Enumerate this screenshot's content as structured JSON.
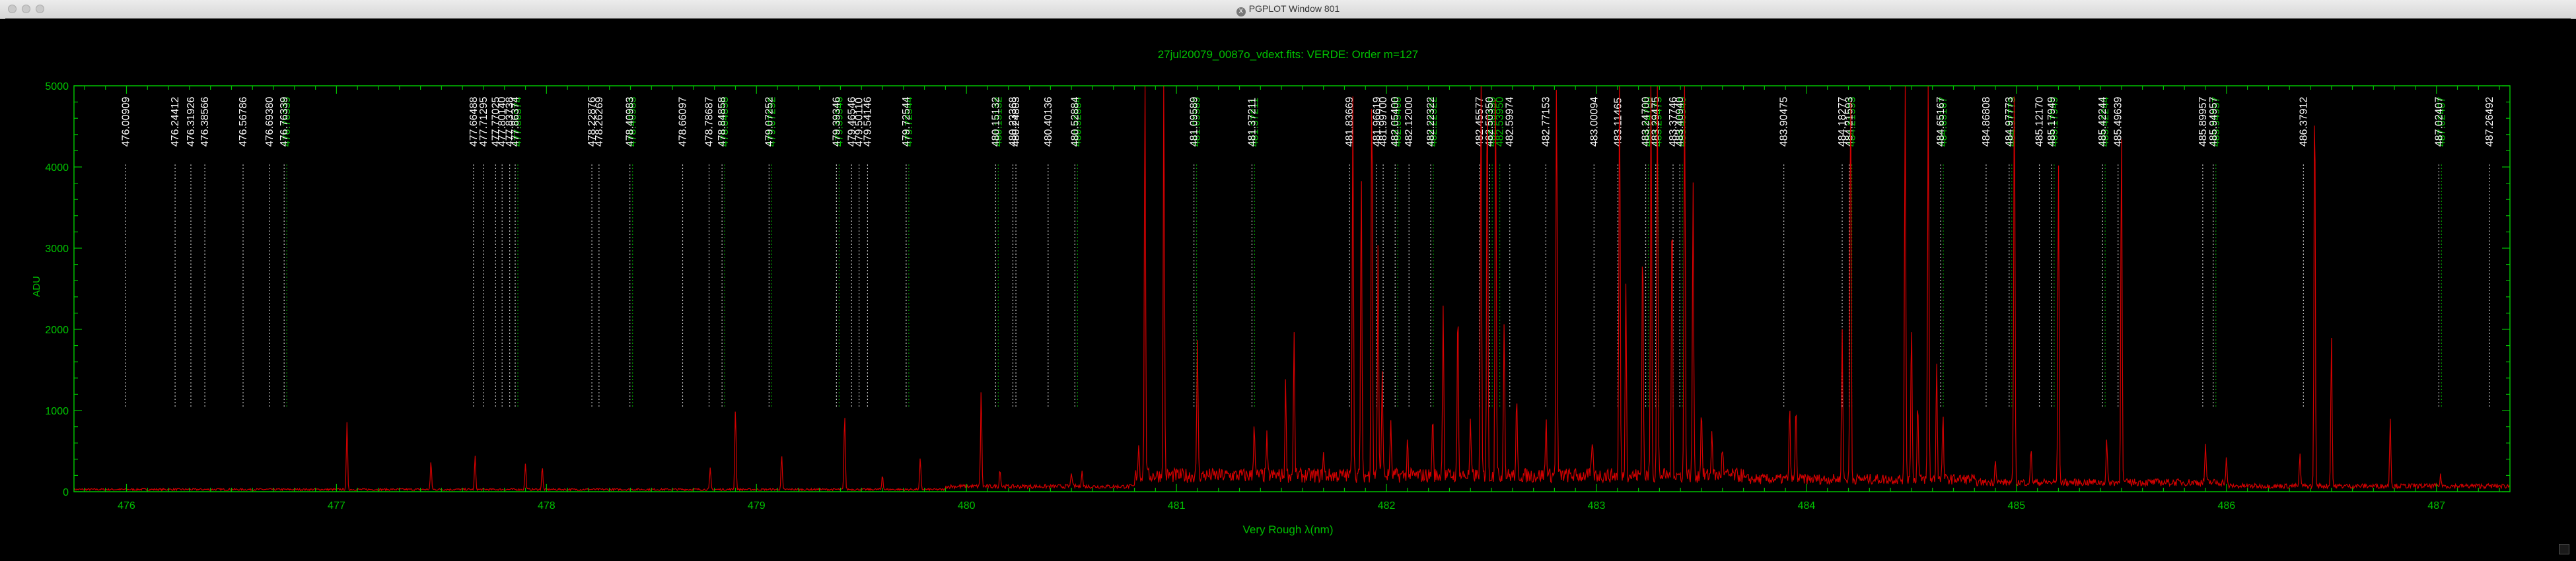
{
  "window": {
    "title": "PGPLOT Window 801"
  },
  "chart_data": {
    "type": "line",
    "title": "27jul20079_0087o_vdext.fits: VERDE: Order m=127",
    "xlabel": "Very Rough λ(nm)",
    "ylabel": "ADU",
    "xlim": [
      475.75,
      487.35
    ],
    "ylim": [
      0,
      5000
    ],
    "xticks": [
      476,
      477,
      478,
      479,
      480,
      481,
      482,
      483,
      484,
      485,
      486,
      487
    ],
    "yticks": [
      0,
      1000,
      2000,
      3000,
      4000,
      5000
    ],
    "colors": {
      "axes": "#00c000",
      "spectrum": "#d40000",
      "white_lines": "#ffffff",
      "green_lines": "#00c000"
    },
    "white_lines": [
      {
        "wl": 476.00909,
        "label": "476.00909"
      },
      {
        "wl": 476.24412,
        "label": "476.24412"
      },
      {
        "wl": 476.31926,
        "label": "476.31926"
      },
      {
        "wl": 476.38566,
        "label": "476.38566"
      },
      {
        "wl": 476.56786,
        "label": "476.56786"
      },
      {
        "wl": 476.6938,
        "label": "476.69380"
      },
      {
        "wl": 476.76339,
        "label": "476.76339"
      },
      {
        "wl": 477.66488,
        "label": "477.66488"
      },
      {
        "wl": 477.71295,
        "label": "477.71295"
      },
      {
        "wl": 477.77025,
        "label": "477.77025"
      },
      {
        "wl": 477.8014,
        "label": "477.80140"
      },
      {
        "wl": 477.83738,
        "label": "477.83738"
      },
      {
        "wl": 477.86374,
        "label": "477.86374"
      },
      {
        "wl": 478.22876,
        "label": "478.22876"
      },
      {
        "wl": 478.26269,
        "label": "478.26269"
      },
      {
        "wl": 478.40983,
        "label": "478.40983"
      },
      {
        "wl": 478.66097,
        "label": "478.66097"
      },
      {
        "wl": 478.78687,
        "label": "478.78687"
      },
      {
        "wl": 478.84858,
        "label": "478.84858"
      },
      {
        "wl": 479.07252,
        "label": "479.07252"
      },
      {
        "wl": 479.39346,
        "label": "479.39346"
      },
      {
        "wl": 479.46546,
        "label": "479.46546"
      },
      {
        "wl": 479.5011,
        "label": "479.50110"
      },
      {
        "wl": 479.54146,
        "label": "479.54146"
      },
      {
        "wl": 479.72544,
        "label": "479.72544"
      },
      {
        "wl": 480.15132,
        "label": "480.15132"
      },
      {
        "wl": 480.23368,
        "label": "480.23368"
      },
      {
        "wl": 480.24803,
        "label": "480.24803"
      },
      {
        "wl": 480.40136,
        "label": "480.40136"
      },
      {
        "wl": 480.52884,
        "label": "480.52884"
      },
      {
        "wl": 481.09589,
        "label": "481.09589"
      },
      {
        "wl": 481.37211,
        "label": "481.37211"
      },
      {
        "wl": 481.83669,
        "label": "481.83669"
      },
      {
        "wl": 481.96619,
        "label": "481.96619"
      },
      {
        "wl": 481.997,
        "label": "481.99700"
      },
      {
        "wl": 482.054,
        "label": "482.05400"
      },
      {
        "wl": 482.12,
        "label": "482.12000"
      },
      {
        "wl": 482.22322,
        "label": "482.22322"
      },
      {
        "wl": 482.45577,
        "label": "482.45577"
      },
      {
        "wl": 482.5035,
        "label": "482.50350"
      },
      {
        "wl": 482.59974,
        "label": "482.59974"
      },
      {
        "wl": 482.77153,
        "label": "482.77153"
      },
      {
        "wl": 483.00094,
        "label": "483.00094"
      },
      {
        "wl": 483.11465,
        "label": "483.11465"
      },
      {
        "wl": 483.247,
        "label": "483.24700"
      },
      {
        "wl": 483.29475,
        "label": "483.29475"
      },
      {
        "wl": 483.37746,
        "label": "483.37746"
      },
      {
        "wl": 483.4094,
        "label": "483.40940"
      },
      {
        "wl": 483.90475,
        "label": "483.90475"
      },
      {
        "wl": 484.18277,
        "label": "484.18277"
      },
      {
        "wl": 484.21593,
        "label": "484.21593"
      },
      {
        "wl": 484.65167,
        "label": "484.65167"
      },
      {
        "wl": 484.86808,
        "label": "484.86808"
      },
      {
        "wl": 484.97773,
        "label": "484.97773"
      },
      {
        "wl": 485.1217,
        "label": "485.12170"
      },
      {
        "wl": 485.17949,
        "label": "485.17949"
      },
      {
        "wl": 485.42244,
        "label": "485.42244"
      },
      {
        "wl": 485.49639,
        "label": "485.49639"
      },
      {
        "wl": 485.89957,
        "label": "485.89957"
      },
      {
        "wl": 485.94957,
        "label": "485.94957"
      },
      {
        "wl": 486.37912,
        "label": "486.37912"
      },
      {
        "wl": 487.02407,
        "label": "487.02407"
      },
      {
        "wl": 487.26492,
        "label": "487.26492"
      }
    ],
    "green_lines": [
      {
        "wl": 476.76339,
        "label": "476.76339"
      },
      {
        "wl": 477.86374,
        "label": "477.86374"
      },
      {
        "wl": 478.40983,
        "label": "478.40983"
      },
      {
        "wl": 478.84858,
        "label": "478.84858"
      },
      {
        "wl": 479.07252,
        "label": "479.07252"
      },
      {
        "wl": 479.39346,
        "label": "479.39346"
      },
      {
        "wl": 479.72544,
        "label": "479.72544"
      },
      {
        "wl": 480.15132,
        "label": "480.15132"
      },
      {
        "wl": 480.52884,
        "label": "480.52884"
      },
      {
        "wl": 481.09589,
        "label": "481.09589"
      },
      {
        "wl": 481.37211,
        "label": "481.37211"
      },
      {
        "wl": 482.054,
        "label": "482.05400"
      },
      {
        "wl": 482.22322,
        "label": "482.22322"
      },
      {
        "wl": 482.5035,
        "label": "482.50350"
      },
      {
        "wl": 482.5395,
        "label": "482.53950"
      },
      {
        "wl": 483.247,
        "label": "483.24700"
      },
      {
        "wl": 483.29475,
        "label": "483.29475"
      },
      {
        "wl": 483.4094,
        "label": "483.40940"
      },
      {
        "wl": 484.21593,
        "label": "484.21593"
      },
      {
        "wl": 484.65167,
        "label": "484.65167"
      },
      {
        "wl": 484.97773,
        "label": "484.97773"
      },
      {
        "wl": 485.17949,
        "label": "485.17949"
      },
      {
        "wl": 485.42244,
        "label": "485.42244"
      },
      {
        "wl": 485.94957,
        "label": "485.94957"
      },
      {
        "wl": 487.02407,
        "label": "487.02407"
      }
    ],
    "peaks": [
      [
        477.05,
        820
      ],
      [
        477.45,
        340
      ],
      [
        477.66,
        420
      ],
      [
        477.9,
        320
      ],
      [
        477.98,
        280
      ],
      [
        478.78,
        260
      ],
      [
        478.9,
        1020
      ],
      [
        479.12,
        420
      ],
      [
        479.42,
        950
      ],
      [
        479.6,
        180
      ],
      [
        479.78,
        380
      ],
      [
        480.07,
        1200
      ],
      [
        480.16,
        220
      ],
      [
        480.5,
        180
      ],
      [
        480.55,
        200
      ],
      [
        480.82,
        400
      ],
      [
        480.85,
        5000
      ],
      [
        480.94,
        5000
      ],
      [
        481.1,
        1700
      ],
      [
        481.37,
        680
      ],
      [
        481.43,
        480
      ],
      [
        481.52,
        1150
      ],
      [
        481.56,
        1750
      ],
      [
        481.7,
        260
      ],
      [
        481.84,
        4700
      ],
      [
        481.88,
        3800
      ],
      [
        481.93,
        5000
      ],
      [
        481.96,
        2900
      ],
      [
        481.98,
        1300
      ],
      [
        482.02,
        650
      ],
      [
        482.1,
        420
      ],
      [
        482.22,
        750
      ],
      [
        482.27,
        2150
      ],
      [
        482.34,
        2100
      ],
      [
        482.4,
        620
      ],
      [
        482.45,
        5000
      ],
      [
        482.48,
        5000
      ],
      [
        482.52,
        5000
      ],
      [
        482.56,
        1950
      ],
      [
        482.62,
        900
      ],
      [
        482.76,
        700
      ],
      [
        482.81,
        5000
      ],
      [
        482.98,
        450
      ],
      [
        483.11,
        5000
      ],
      [
        483.14,
        2400
      ],
      [
        483.22,
        3000
      ],
      [
        483.26,
        5000
      ],
      [
        483.29,
        5000
      ],
      [
        483.36,
        3400
      ],
      [
        483.42,
        5000
      ],
      [
        483.46,
        3700
      ],
      [
        483.5,
        850
      ],
      [
        483.55,
        600
      ],
      [
        483.6,
        350
      ],
      [
        483.92,
        850
      ],
      [
        483.95,
        900
      ],
      [
        484.17,
        1900
      ],
      [
        484.21,
        5000
      ],
      [
        484.47,
        5000
      ],
      [
        484.5,
        1950
      ],
      [
        484.53,
        950
      ],
      [
        484.58,
        5000
      ],
      [
        484.62,
        1450
      ],
      [
        484.65,
        780
      ],
      [
        484.9,
        300
      ],
      [
        484.99,
        5000
      ],
      [
        485.07,
        420
      ],
      [
        485.2,
        4000
      ],
      [
        485.43,
        520
      ],
      [
        485.5,
        4400
      ],
      [
        485.9,
        480
      ],
      [
        486.0,
        300
      ],
      [
        486.35,
        380
      ],
      [
        486.42,
        5000
      ],
      [
        486.5,
        1850
      ],
      [
        486.78,
        860
      ],
      [
        487.02,
        130
      ]
    ]
  }
}
